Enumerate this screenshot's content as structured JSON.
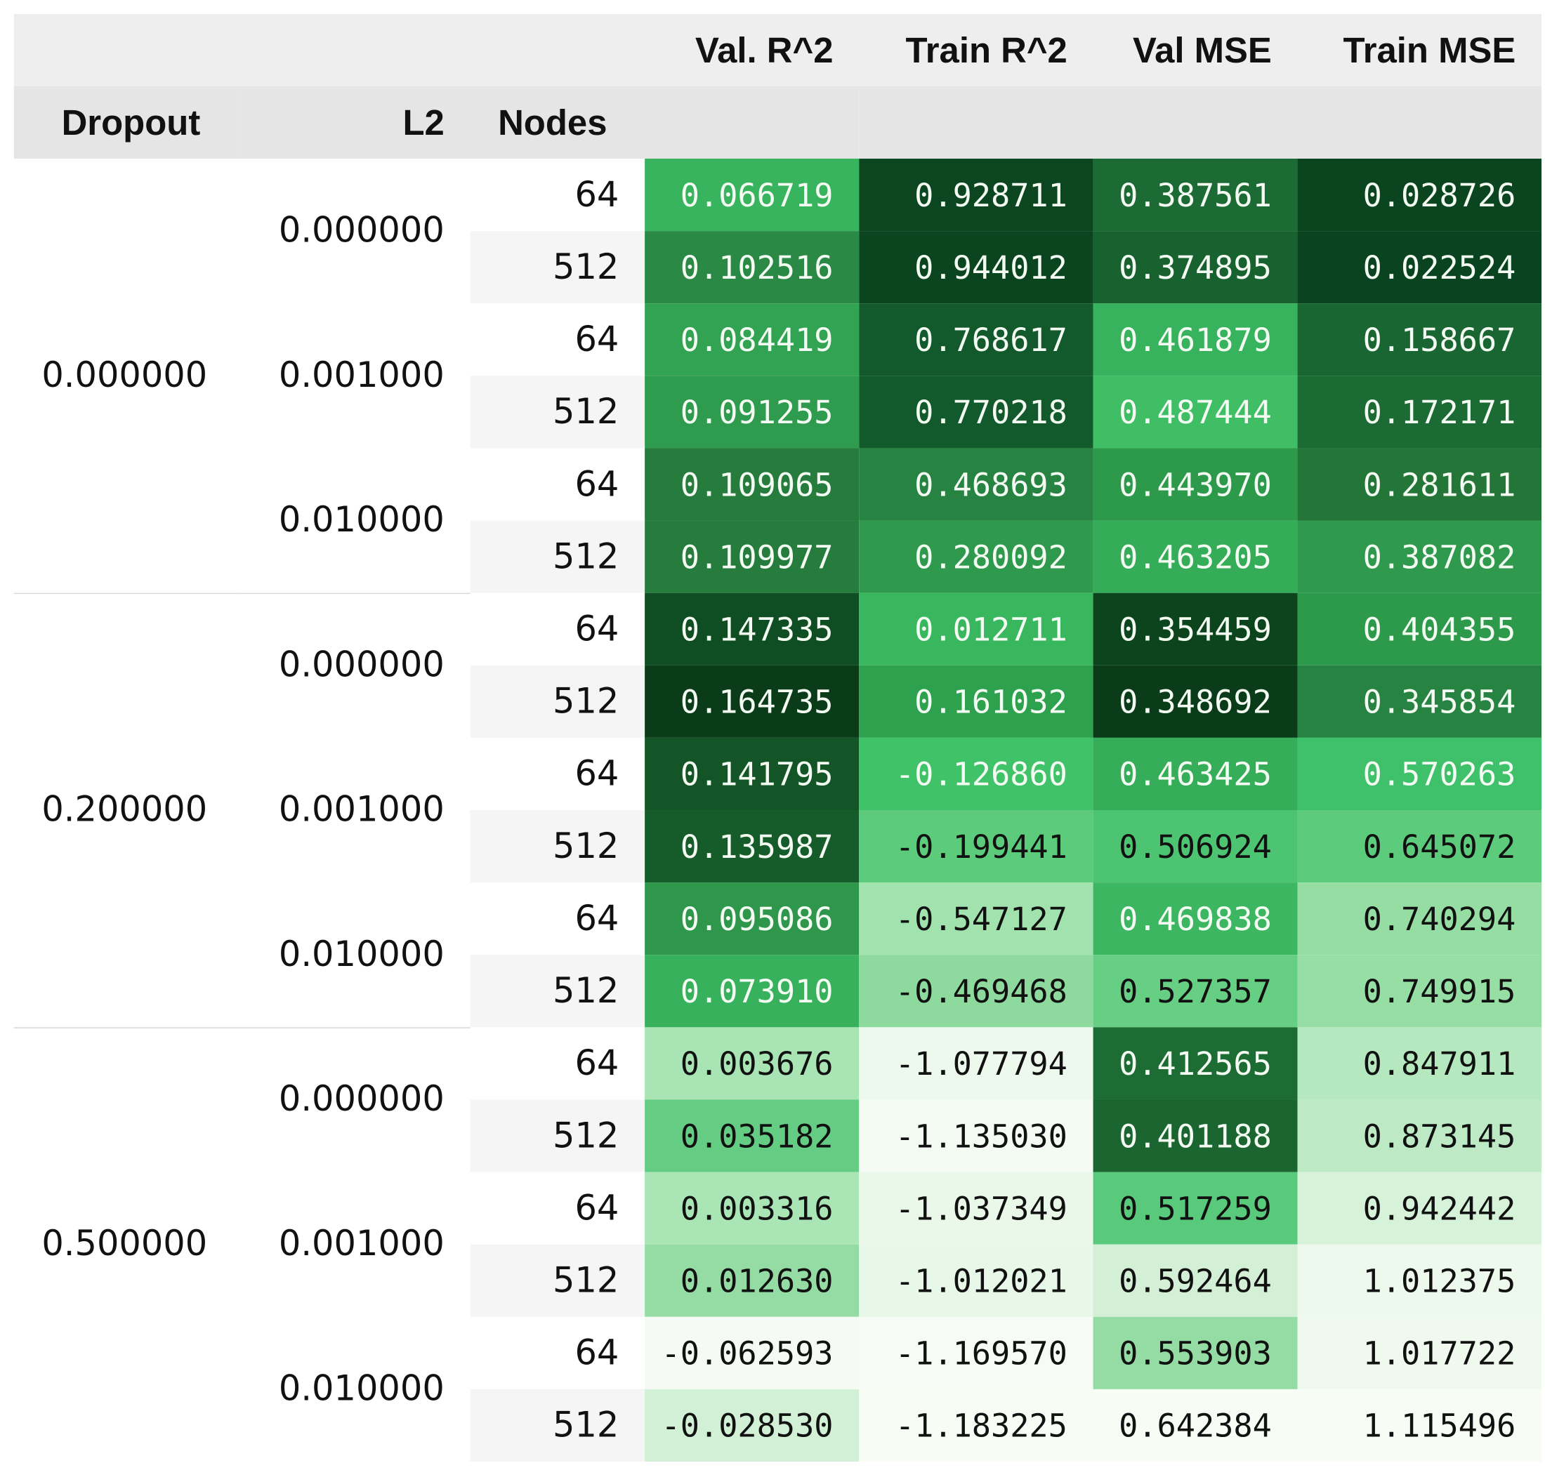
{
  "table": {
    "headers": {
      "metrics": [
        "Val. R^2",
        "Train R^2",
        "Val MSE",
        "Train MSE"
      ],
      "index": [
        "Dropout",
        "L2",
        "Nodes"
      ]
    },
    "dropout_groups": [
      {
        "dropout": "0.000000",
        "l2_groups": [
          {
            "l2": "0.000000",
            "rows": [
              {
                "nodes": "64",
                "values": [
                  "0.066719",
                  "0.928711",
                  "0.387561",
                  "0.028726"
                ],
                "colors": [
                  "#38b45e",
                  "#0c4620",
                  "#1c6a34",
                  "#0b4520"
                ]
              },
              {
                "nodes": "512",
                "values": [
                  "0.102516",
                  "0.944012",
                  "0.374895",
                  "0.022524"
                ],
                "colors": [
                  "#2a8945",
                  "#0a4520",
                  "#186230",
                  "#0a431f"
                ]
              }
            ]
          },
          {
            "l2": "0.001000",
            "rows": [
              {
                "nodes": "64",
                "values": [
                  "0.084419",
                  "0.768617",
                  "0.461879",
                  "0.158667"
                ],
                "colors": [
                  "#31a353",
                  "#125a2b",
                  "#37b35e",
                  "#1a6632"
                ]
              },
              {
                "nodes": "512",
                "values": [
                  "0.091255",
                  "0.770218",
                  "0.487444",
                  "0.172171"
                ],
                "colors": [
                  "#2f9b4e",
                  "#125a2b",
                  "#3fbe66",
                  "#1c6a34"
                ]
              }
            ]
          },
          {
            "l2": "0.010000",
            "rows": [
              {
                "nodes": "64",
                "values": [
                  "0.109065",
                  "0.468693",
                  "0.443970",
                  "0.281611"
                ],
                "colors": [
                  "#267c3d",
                  "#278342",
                  "#2d9a4b",
                  "#237638"
                ]
              },
              {
                "nodes": "512",
                "values": [
                  "0.109977",
                  "0.280092",
                  "0.463205",
                  "0.387082"
                ],
                "colors": [
                  "#267c3d",
                  "#2f9a4d",
                  "#35ac58",
                  "#2f9a4d"
                ]
              }
            ]
          }
        ]
      },
      {
        "dropout": "0.200000",
        "l2_groups": [
          {
            "l2": "0.000000",
            "rows": [
              {
                "nodes": "64",
                "values": [
                  "0.147335",
                  "0.012711",
                  "0.354459",
                  "0.404355"
                ],
                "colors": [
                  "#0f4d22",
                  "#39b75f",
                  "#0b441d",
                  "#2d9a4b"
                ]
              },
              {
                "nodes": "512",
                "values": [
                  "0.164735",
                  "0.161032",
                  "0.348692",
                  "0.345854"
                ],
                "colors": [
                  "#0a3c19",
                  "#2ea14f",
                  "#0a3c19",
                  "#278342"
                ]
              }
            ]
          },
          {
            "l2": "0.001000",
            "rows": [
              {
                "nodes": "64",
                "values": [
                  "0.141795",
                  "-0.126860",
                  "0.463425",
                  "0.570263"
                ],
                "colors": [
                  "#135526",
                  "#40c269",
                  "#36ad59",
                  "#3fc06a"
                ]
              },
              {
                "nodes": "512",
                "values": [
                  "0.135987",
                  "-0.199441",
                  "0.506924",
                  "0.645072"
                ],
                "colors": [
                  "#165c2a",
                  "#5ccb7b",
                  "#4cc471",
                  "#5ccb7b"
                ]
              }
            ]
          },
          {
            "l2": "0.010000",
            "rows": [
              {
                "nodes": "64",
                "values": [
                  "0.095086",
                  "-0.547127",
                  "0.469838",
                  "0.740294"
                ],
                "colors": [
                  "#2e974c",
                  "#a1e2ae",
                  "#3cb660",
                  "#95dda3"
                ]
              },
              {
                "nodes": "512",
                "values": [
                  "0.073910",
                  "-0.469468",
                  "0.527357",
                  "0.749915"
                ],
                "colors": [
                  "#37b15b",
                  "#8ed99d",
                  "#67cf84",
                  "#97dea5"
                ]
              }
            ]
          }
        ]
      },
      {
        "dropout": "0.500000",
        "l2_groups": [
          {
            "l2": "0.000000",
            "rows": [
              {
                "nodes": "64",
                "values": [
                  "0.003676",
                  "-1.077794",
                  "0.412565",
                  "0.847911"
                ],
                "colors": [
                  "#a9e4b4",
                  "#eef9ee",
                  "#1d6c34",
                  "#b5e8be"
                ]
              },
              {
                "nodes": "512",
                "values": [
                  "0.035182",
                  "-1.135030",
                  "0.401188",
                  "0.873145"
                ],
                "colors": [
                  "#64cc83",
                  "#f4fbf3",
                  "#1a6530",
                  "#bdeac5"
                ]
              }
            ]
          },
          {
            "l2": "0.001000",
            "rows": [
              {
                "nodes": "64",
                "values": [
                  "0.003316",
                  "-1.037349",
                  "0.517259",
                  "0.942442"
                ],
                "colors": [
                  "#aae5b5",
                  "#eaf8ea",
                  "#59c97b",
                  "#d6f2d8"
                ]
              },
              {
                "nodes": "512",
                "values": [
                  "0.012630",
                  "-1.012021",
                  "0.592464",
                  "1.012375"
                ],
                "colors": [
                  "#94dca3",
                  "#e7f7e8",
                  "#d3f0d6",
                  "#eef9ee"
                ]
              }
            ]
          },
          {
            "l2": "0.010000",
            "rows": [
              {
                "nodes": "64",
                "values": [
                  "-0.062593",
                  "-1.169570",
                  "0.553903",
                  "1.017722"
                ],
                "colors": [
                  "#f5fbf4",
                  "#f6fcf5",
                  "#94dca3",
                  "#eff9ee"
                ]
              },
              {
                "nodes": "512",
                "values": [
                  "-0.028530",
                  "-1.183225",
                  "0.642384",
                  "1.115496"
                ],
                "colors": [
                  "#d2f0d5",
                  "#f7fcf5",
                  "#f7fcf5",
                  "#f7fcf5"
                ]
              }
            ]
          }
        ]
      }
    ]
  }
}
